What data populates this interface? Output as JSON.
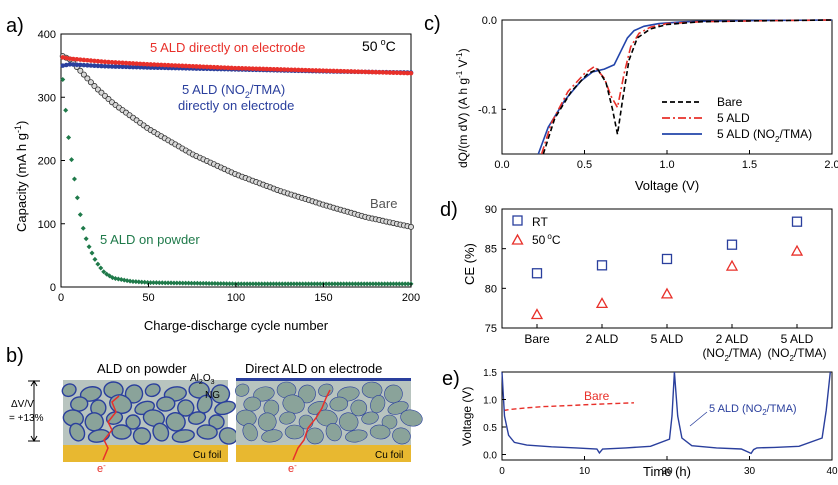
{
  "chart_data": [
    {
      "panel": "a)",
      "type": "scatter",
      "xlabel": "Charge-discharge cycle number",
      "ylabel": "Capacity (mA h g",
      "ylabel_sup": "-1",
      "ylabel_close": ")",
      "xlim": [
        0,
        200
      ],
      "ylim": [
        0,
        400
      ],
      "xticks": [
        "0",
        "50",
        "100",
        "150",
        "200"
      ],
      "yticks": [
        "0",
        "100",
        "200",
        "300",
        "400"
      ],
      "temperature_label": "50",
      "temperature_unit": "C",
      "degree": "o",
      "series": [
        {
          "name": "5 ALD directly on electrode",
          "color": "#e8302a",
          "x": [
            1,
            5,
            25,
            50,
            100,
            150,
            200
          ],
          "y": [
            363,
            361,
            356,
            352,
            346,
            342,
            338
          ]
        },
        {
          "name": "5 ALD (NO",
          "name_sub": "2",
          "name_end": "/TMA)",
          "name_line2": "directly on electrode",
          "color": "#2a3f9d",
          "x": [
            1,
            5,
            25,
            50,
            100,
            150,
            200
          ],
          "y": [
            350,
            352,
            349,
            347,
            344,
            341,
            339
          ]
        },
        {
          "name": "Bare",
          "color": "#333333",
          "x": [
            1,
            5,
            10,
            20,
            30,
            50,
            75,
            100,
            125,
            150,
            175,
            200
          ],
          "y": [
            365,
            360,
            345,
            315,
            290,
            250,
            210,
            178,
            152,
            130,
            110,
            95
          ]
        },
        {
          "name": "5 ALD on powder",
          "color": "#1f7a4a",
          "x": [
            1,
            3,
            5,
            8,
            10,
            12,
            15,
            20,
            25,
            30,
            40,
            50,
            100,
            150,
            200
          ],
          "y": [
            328,
            270,
            220,
            165,
            130,
            100,
            70,
            40,
            22,
            14,
            9,
            7,
            5,
            5,
            5
          ]
        }
      ]
    },
    {
      "panel": "c)",
      "type": "line",
      "xlabel": "Voltage (V)",
      "ylabel": "dQ/(m dV) (A h g",
      "ylabel_sup": "-1",
      "ylabel_mid": " V",
      "ylabel_sup2": "-1",
      "ylabel_close": ")",
      "xlim": [
        0,
        2.0
      ],
      "ylim": [
        -0.15,
        0.0
      ],
      "xticks": [
        "0.0",
        "0.5",
        "1.0",
        "1.5",
        "2.0"
      ],
      "yticks": [
        "0.0",
        "-0.1"
      ],
      "series": [
        {
          "name": "Bare",
          "color": "#000000",
          "dash": "5,3",
          "x": [
            0.25,
            0.32,
            0.42,
            0.52,
            0.58,
            0.63,
            0.67,
            0.7,
            0.73,
            0.77,
            0.82,
            0.9,
            1.0,
            1.2,
            1.5,
            2.0
          ],
          "y": [
            -0.15,
            -0.11,
            -0.08,
            -0.06,
            -0.055,
            -0.07,
            -0.1,
            -0.128,
            -0.09,
            -0.045,
            -0.02,
            -0.01,
            -0.005,
            -0.002,
            -0.001,
            0
          ]
        },
        {
          "name": "5 ALD",
          "color": "#e8302a",
          "dash": "8,3,2,3",
          "x": [
            0.24,
            0.3,
            0.4,
            0.5,
            0.56,
            0.62,
            0.66,
            0.7,
            0.74,
            0.78,
            0.83,
            0.9,
            1.0,
            1.2,
            1.5,
            2.0
          ],
          "y": [
            -0.15,
            -0.115,
            -0.08,
            -0.06,
            -0.052,
            -0.065,
            -0.085,
            -0.098,
            -0.06,
            -0.03,
            -0.015,
            -0.008,
            -0.004,
            -0.002,
            -0.001,
            0
          ]
        },
        {
          "name": "5 ALD (NO",
          "name_sub": "2",
          "name_end": "/TMA)",
          "color": "#2244aa",
          "dash": "",
          "x": [
            0.22,
            0.28,
            0.38,
            0.48,
            0.55,
            0.62,
            0.68,
            0.72,
            0.76,
            0.8,
            0.86,
            0.95,
            1.1,
            1.3,
            1.6,
            2.0
          ],
          "y": [
            -0.15,
            -0.12,
            -0.09,
            -0.068,
            -0.058,
            -0.055,
            -0.05,
            -0.035,
            -0.02,
            -0.012,
            -0.007,
            -0.004,
            -0.002,
            -0.001,
            -0.0005,
            0
          ]
        }
      ]
    },
    {
      "panel": "d)",
      "type": "scatter",
      "ylabel": "CE (%)",
      "ylim": [
        75,
        90
      ],
      "yticks": [
        "75",
        "80",
        "85",
        "90"
      ],
      "categories": [
        "Bare",
        "2 ALD",
        "5 ALD",
        "2 ALD",
        "5 ALD"
      ],
      "categories_line2": [
        "",
        "",
        "",
        "(NO",
        "(NO"
      ],
      "categories_sub": [
        "",
        "",
        "",
        "2",
        "2"
      ],
      "categories_end": [
        "",
        "",
        "",
        "/TMA)",
        "/TMA)"
      ],
      "series": [
        {
          "name": "RT",
          "color": "#2a3f9d",
          "marker": "square",
          "values": [
            81.9,
            82.9,
            83.7,
            85.5,
            88.4
          ]
        },
        {
          "name": "50",
          "name_sup": "o",
          "name_end": "C",
          "color": "#e8302a",
          "marker": "triangle",
          "values": [
            76.7,
            78.1,
            79.3,
            82.8,
            84.7
          ]
        }
      ]
    },
    {
      "panel": "e)",
      "type": "line",
      "xlabel": "Time (h)",
      "ylabel": "Voltage (V)",
      "xlim": [
        0,
        40
      ],
      "ylim": [
        -0.1,
        1.5
      ],
      "xticks": [
        "0",
        "10",
        "20",
        "30",
        "40"
      ],
      "yticks": [
        "0.0",
        "0.5",
        "1.0",
        "1.5"
      ],
      "series": [
        {
          "name": "Bare",
          "color": "#e8302a",
          "dash": "5,3",
          "x": [
            0.2,
            1,
            3,
            5,
            8,
            11,
            14,
            16
          ],
          "y": [
            0.8,
            0.82,
            0.85,
            0.87,
            0.89,
            0.91,
            0.93,
            0.94
          ]
        },
        {
          "name": "5 ALD (NO",
          "name_sub": "2",
          "name_end": "/TMA)",
          "color": "#2a3f9d",
          "dash": "",
          "x": [
            0,
            0.3,
            0.8,
            1.5,
            3,
            6,
            9,
            11.5,
            11.8,
            12.2,
            15,
            18,
            20.3,
            20.6,
            20.9,
            21.3,
            21.8,
            23,
            26,
            29,
            30.2,
            30.5,
            30.9,
            33,
            36,
            38.8,
            39.3,
            39.8
          ],
          "y": [
            1.5,
            0.7,
            0.35,
            0.22,
            0.17,
            0.14,
            0.12,
            0.1,
            0.03,
            0.1,
            0.12,
            0.15,
            0.28,
            0.7,
            1.5,
            0.7,
            0.3,
            0.16,
            0.12,
            0.1,
            0.02,
            0.09,
            0.12,
            0.13,
            0.15,
            0.3,
            0.8,
            1.5
          ]
        }
      ]
    }
  ],
  "panel_b": {
    "label": "b)",
    "left_title": "ALD on powder",
    "right_title": "Direct ALD on electrode",
    "coating_label": "Al",
    "coating_sub1": "2",
    "coating_mid": "O",
    "coating_sub2": "3",
    "ng_label": "NG",
    "cu_label": "Cu foil",
    "electron_label": "e",
    "electron_sup": "-",
    "expansion_label": "ΔV/V",
    "expansion_value": "= +13%",
    "colors": {
      "particle": "#8aa39a",
      "outline": "#2a3f9d",
      "cu": "#e8b830",
      "path": "#e8302a"
    }
  }
}
